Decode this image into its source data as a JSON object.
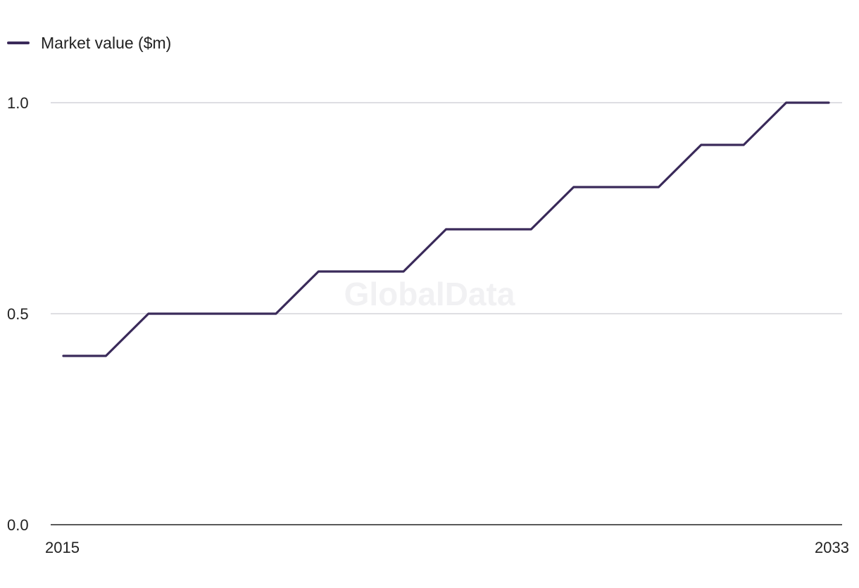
{
  "watermark": "GlobalData",
  "chart_data": {
    "type": "line",
    "title": "",
    "xlabel": "",
    "ylabel": "",
    "x": [
      2015,
      2016,
      2017,
      2018,
      2019,
      2020,
      2021,
      2022,
      2023,
      2024,
      2025,
      2026,
      2027,
      2028,
      2029,
      2030,
      2031,
      2032,
      2033
    ],
    "series": [
      {
        "name": "Market value ($m)",
        "color": "#3a2a5a",
        "values": [
          0.4,
          0.4,
          0.5,
          0.5,
          0.5,
          0.5,
          0.6,
          0.6,
          0.6,
          0.7,
          0.7,
          0.7,
          0.8,
          0.8,
          0.8,
          0.9,
          0.9,
          1.0,
          1.0
        ]
      }
    ],
    "ylim": [
      0,
      1.0
    ],
    "y_ticks": [
      "0.0",
      "0.5",
      "1.0"
    ],
    "x_ticks": [
      "2015",
      "2033"
    ],
    "grid": true,
    "legend": "top-left"
  }
}
